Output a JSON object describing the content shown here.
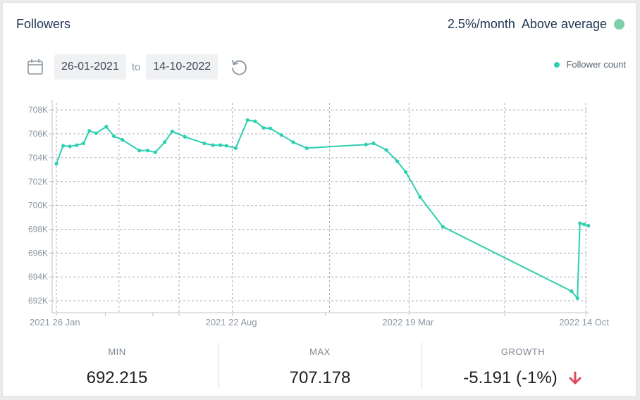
{
  "header": {
    "title": "Followers",
    "rate": "2.5%/month",
    "status_text": "Above average",
    "status_color": "#7fcfac"
  },
  "date_range": {
    "from": "26-01-2021",
    "separator": "to",
    "to": "14-10-2022"
  },
  "legend": {
    "label": "Follower count",
    "color": "#2ecfb1"
  },
  "chart_data": {
    "type": "line",
    "xlabel": "",
    "ylabel": "",
    "ylim": [
      691000,
      708600
    ],
    "y_ticks": [
      692000,
      694000,
      696000,
      698000,
      700000,
      702000,
      704000,
      706000,
      708000
    ],
    "y_tick_labels": [
      "692K",
      "694K",
      "696K",
      "698K",
      "700K",
      "702K",
      "704K",
      "706K",
      "708K"
    ],
    "x_tick_labels": [
      "2021 26 Jan",
      "2021 22 Aug",
      "2022 19 Mar",
      "2022 14 Oct"
    ],
    "x_range": [
      "2021-01-26",
      "2022-10-18"
    ],
    "x_ticks": [
      "2021-01-26",
      "2021-03-25",
      "2021-05-20",
      "2021-06-20",
      "2021-08-22",
      "2021-12-10",
      "2022-03-19",
      "2022-07-10",
      "2022-10-14"
    ],
    "x_major_ticks": [
      "2021-01-26",
      "2021-08-22",
      "2022-03-19",
      "2022-10-14"
    ],
    "vertical_gridlines": [
      "2021-01-26",
      "2021-04-10",
      "2021-06-20",
      "2021-08-22",
      "2021-12-15",
      "2022-03-19",
      "2022-07-10",
      "2022-10-14"
    ],
    "grid": true,
    "series": [
      {
        "name": "Follower count",
        "color": "#2ecfb1",
        "points": [
          {
            "x": "2021-01-26",
            "y": 703500
          },
          {
            "x": "2021-02-03",
            "y": 705000
          },
          {
            "x": "2021-02-11",
            "y": 704950
          },
          {
            "x": "2021-02-19",
            "y": 705050
          },
          {
            "x": "2021-02-27",
            "y": 705200
          },
          {
            "x": "2021-03-06",
            "y": 706250
          },
          {
            "x": "2021-03-14",
            "y": 706050
          },
          {
            "x": "2021-03-26",
            "y": 706600
          },
          {
            "x": "2021-04-04",
            "y": 705800
          },
          {
            "x": "2021-04-14",
            "y": 705500
          },
          {
            "x": "2021-05-04",
            "y": 704600
          },
          {
            "x": "2021-05-14",
            "y": 704600
          },
          {
            "x": "2021-05-23",
            "y": 704450
          },
          {
            "x": "2021-06-03",
            "y": 705300
          },
          {
            "x": "2021-06-12",
            "y": 706200
          },
          {
            "x": "2021-06-27",
            "y": 705750
          },
          {
            "x": "2021-07-20",
            "y": 705200
          },
          {
            "x": "2021-07-30",
            "y": 705050
          },
          {
            "x": "2021-08-08",
            "y": 705050
          },
          {
            "x": "2021-08-15",
            "y": 705000
          },
          {
            "x": "2021-08-26",
            "y": 704800
          },
          {
            "x": "2021-09-09",
            "y": 707150
          },
          {
            "x": "2021-09-18",
            "y": 707050
          },
          {
            "x": "2021-09-28",
            "y": 706500
          },
          {
            "x": "2021-10-06",
            "y": 706450
          },
          {
            "x": "2021-10-19",
            "y": 705900
          },
          {
            "x": "2021-11-02",
            "y": 705300
          },
          {
            "x": "2021-11-18",
            "y": 704800
          },
          {
            "x": "2022-01-27",
            "y": 705100
          },
          {
            "x": "2022-02-05",
            "y": 705200
          },
          {
            "x": "2022-02-20",
            "y": 704650
          },
          {
            "x": "2022-03-05",
            "y": 703700
          },
          {
            "x": "2022-03-15",
            "y": 702800
          },
          {
            "x": "2022-04-01",
            "y": 700700
          },
          {
            "x": "2022-04-28",
            "y": 698200
          },
          {
            "x": "2022-09-27",
            "y": 692800
          },
          {
            "x": "2022-10-04",
            "y": 692215
          },
          {
            "x": "2022-10-07",
            "y": 698500
          },
          {
            "x": "2022-10-12",
            "y": 698400
          },
          {
            "x": "2022-10-17",
            "y": 698300
          }
        ]
      }
    ]
  },
  "stats": {
    "min_label": "MIN",
    "min_value": "692.215",
    "max_label": "MAX",
    "max_value": "707.178",
    "growth_label": "GROWTH",
    "growth_value": "-5.191 (-1%)",
    "growth_color": "#e0485b"
  },
  "icons": {
    "calendar": "calendar-icon",
    "reset": "reset-icon",
    "arrow": "arrow-down-icon"
  }
}
